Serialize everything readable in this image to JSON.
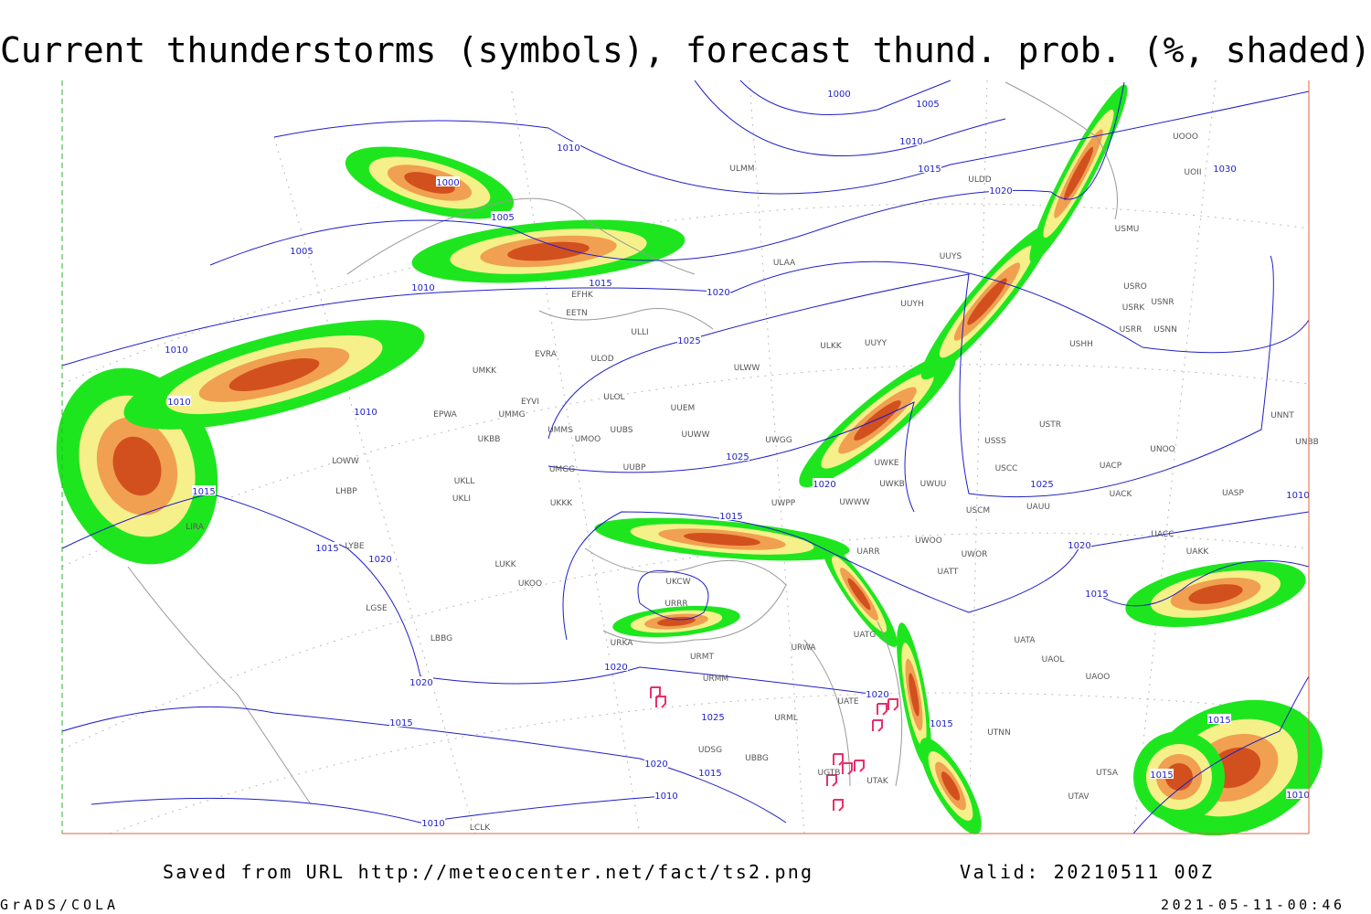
{
  "header": {
    "title": "Current thunderstorms (symbols), forecast thund. prob. (%, shaded)"
  },
  "map": {
    "isobar_labels": [
      1000,
      1005,
      1010,
      1015,
      1020,
      1030,
      1010,
      1000,
      1005,
      1005,
      1015,
      1020,
      1010,
      1010,
      1025,
      1010,
      1010,
      1025,
      1020,
      1025,
      1015,
      1015,
      1020,
      1015,
      1020,
      1015,
      1010,
      1020,
      1020,
      1025,
      1015,
      1020,
      1015,
      1015,
      1015,
      1020,
      1015,
      1010,
      1010,
      1010
    ],
    "station_labels": [
      "ULMM",
      "ULDD",
      "USMU",
      "ULAA",
      "EFHK",
      "EETN",
      "ULLI",
      "UUYH",
      "UUYS",
      "USRO",
      "USRK",
      "USNR",
      "USRR",
      "USNN",
      "USHH",
      "ULKK",
      "UUYY",
      "EVRA",
      "ULOD",
      "ULWW",
      "UMKK",
      "ULOL",
      "UUEM",
      "EYVI",
      "UMMG",
      "EPWA",
      "UMMS",
      "UUBS",
      "UUWW",
      "UWGG",
      "USSS",
      "USTR",
      "UNNT",
      "UNBB",
      "UMOO",
      "UKBB",
      "UWKE",
      "UNOO",
      "LOWW",
      "UMGG",
      "UUBP",
      "UWKB",
      "UWUU",
      "USCC",
      "UACP",
      "LHBP",
      "UKLL",
      "UKLI",
      "UWPP",
      "UWWW",
      "USCM",
      "UAUU",
      "UACK",
      "UASP",
      "UKKK",
      "LIRA",
      "LYBE",
      "UKOO",
      "LUKK",
      "UKCW",
      "URRR",
      "UWOO",
      "UWOR",
      "UATT",
      "UARR",
      "UATG",
      "URKA",
      "URMT",
      "URWA",
      "URMM",
      "UATE",
      "URML",
      "UGTB",
      "UTAK",
      "UDSG",
      "UBBG",
      "LCLK",
      "UTNN",
      "UAOO",
      "UAOL",
      "UATA",
      "UTSA",
      "UTAV",
      "LGSE",
      "LBBG",
      "UOOO",
      "UOII",
      "UAKK",
      "UACC"
    ]
  },
  "footer": {
    "source": "Saved from URL http://meteocenter.net/fact/ts2.png",
    "valid": "Valid: 20210511 00Z",
    "software": "GrADS/COLA",
    "timestamp": "2021-05-11-00:46"
  }
}
